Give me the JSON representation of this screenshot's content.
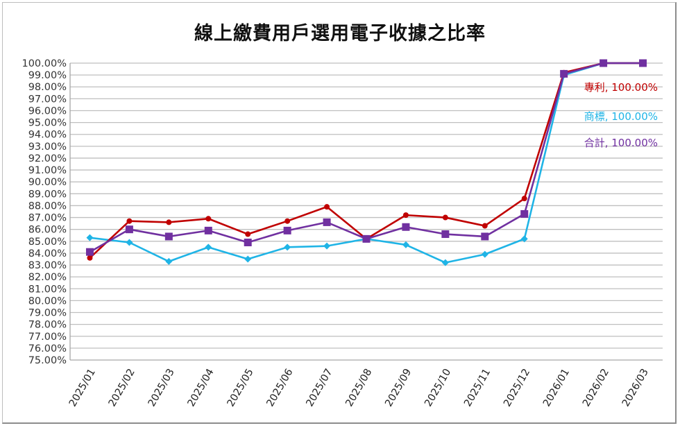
{
  "chart_data": {
    "type": "line",
    "title": "線上繳費用戶選用電子收據之比率",
    "xlabel": "",
    "ylabel": "",
    "ylim": [
      0.75,
      1.0
    ],
    "ytick_step": 0.01,
    "ytick_format": "percent_2dp",
    "grid": true,
    "legend_position": "inline-labels-right",
    "categories": [
      "2025/01",
      "2025/02",
      "2025/03",
      "2025/04",
      "2025/05",
      "2025/06",
      "2025/07",
      "2025/08",
      "2025/09",
      "2025/10",
      "2025/11",
      "2025/12",
      "2026/01",
      "2026/02",
      "2026/03"
    ],
    "series": [
      {
        "name": "專利",
        "color": "#c00000",
        "marker": "circle",
        "values": [
          0.836,
          0.867,
          0.866,
          0.869,
          0.856,
          0.867,
          0.879,
          0.852,
          0.872,
          0.87,
          0.863,
          0.886,
          0.992,
          1.0,
          1.0
        ],
        "label": "專利, 100.00%"
      },
      {
        "name": "商標",
        "color": "#1fb4e6",
        "marker": "diamond",
        "values": [
          0.853,
          0.849,
          0.833,
          0.845,
          0.835,
          0.845,
          0.846,
          0.852,
          0.847,
          0.832,
          0.839,
          0.852,
          0.99,
          1.0,
          1.0
        ],
        "label": "商標, 100.00%"
      },
      {
        "name": "合計",
        "color": "#7030a0",
        "marker": "square",
        "values": [
          0.841,
          0.86,
          0.854,
          0.859,
          0.849,
          0.859,
          0.866,
          0.852,
          0.862,
          0.856,
          0.854,
          0.873,
          0.991,
          1.0,
          1.0
        ],
        "label": "合計, 100.00%"
      }
    ],
    "annotations": [
      "專利, 100.00%",
      "商標, 100.00%",
      "合計, 100.00%"
    ]
  }
}
